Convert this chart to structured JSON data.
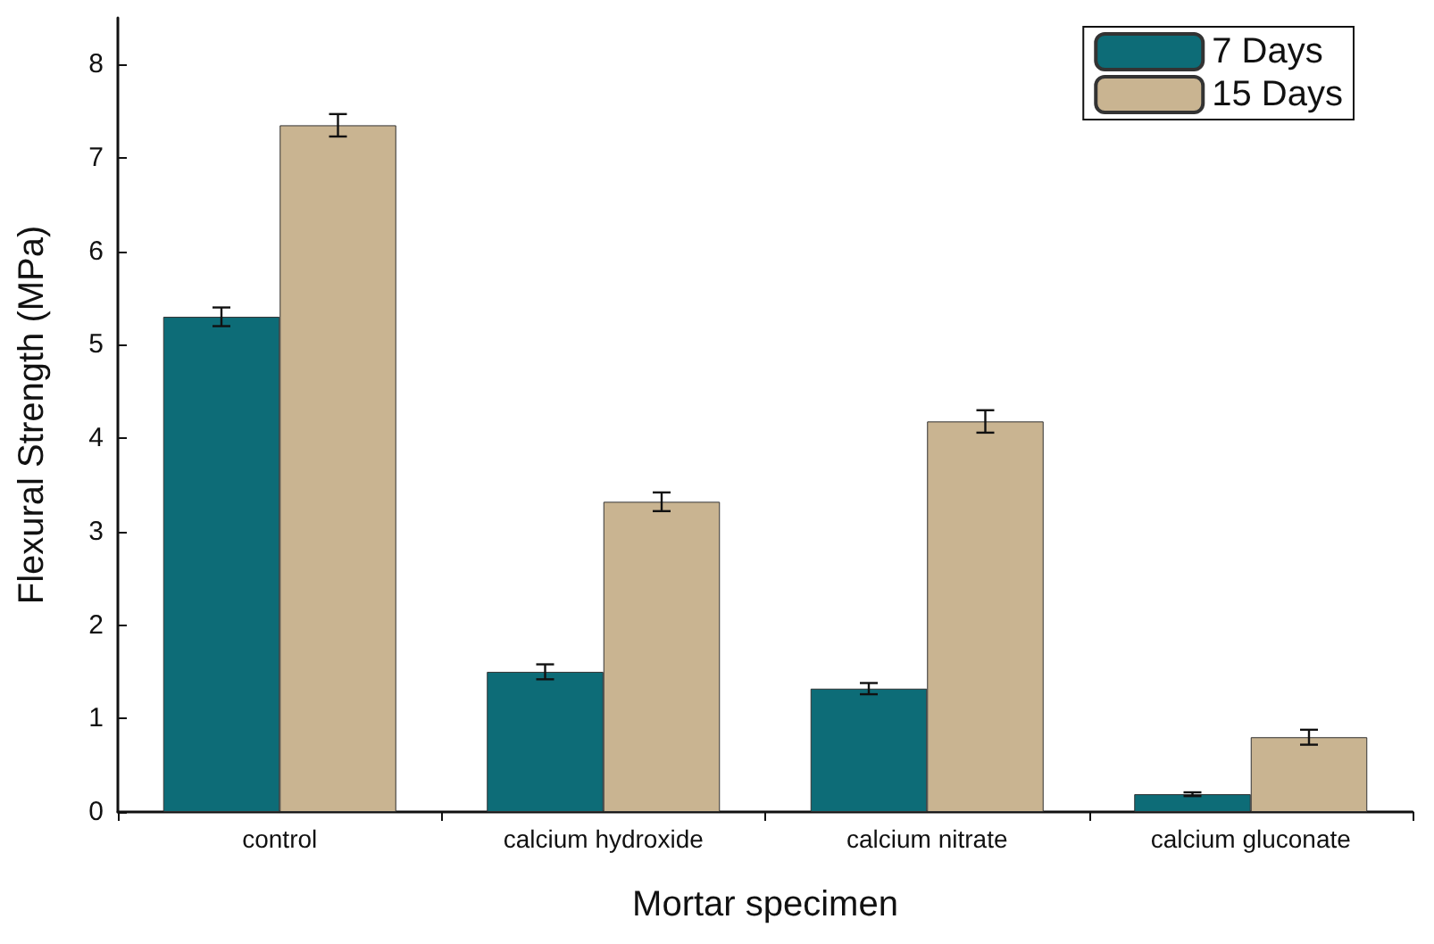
{
  "chart_data": {
    "type": "bar",
    "xlabel": "Mortar specimen",
    "ylabel": "Flexural Strength (MPa)",
    "categories": [
      "control",
      "calcium hydroxide",
      "calcium nitrate",
      "calcium gluconate"
    ],
    "series": [
      {
        "name": "7 Days",
        "color": "#0d6c77",
        "values": [
          5.3,
          1.5,
          1.32,
          0.19
        ],
        "errors": [
          0.1,
          0.08,
          0.06,
          0.02
        ]
      },
      {
        "name": "15 Days",
        "color": "#c9b491",
        "values": [
          7.35,
          3.32,
          4.18,
          0.8
        ],
        "errors": [
          0.12,
          0.1,
          0.12,
          0.08
        ]
      }
    ],
    "ylim": [
      0,
      8.5
    ],
    "yticks": [
      0,
      1,
      2,
      3,
      4,
      5,
      6,
      7,
      8
    ],
    "grid": false,
    "legend": "top right"
  }
}
